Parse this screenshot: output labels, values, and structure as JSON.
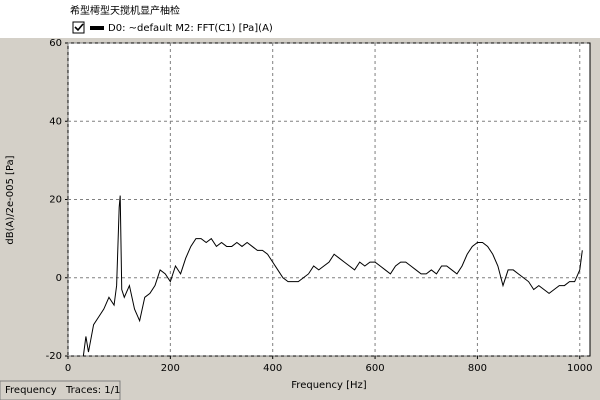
{
  "chart_data": {
    "type": "line",
    "title": "希型樗型天搅机显产柚检",
    "legend_checked": true,
    "x_label": "Frequency [Hz]",
    "y_label": "dB(A)/2e-005 [Pa]",
    "status_left": "Frequency",
    "status_right": "Traces: 1/1",
    "xlim": [
      0,
      1020
    ],
    "ylim": [
      -20,
      60
    ],
    "xticks": [
      0,
      200,
      400,
      600,
      800,
      1000
    ],
    "yticks": [
      -20,
      0,
      20,
      40,
      60
    ],
    "grid": true,
    "x": [
      30,
      35,
      40,
      50,
      60,
      70,
      80,
      90,
      95,
      100,
      102,
      105,
      110,
      120,
      130,
      140,
      150,
      160,
      170,
      180,
      190,
      200,
      210,
      220,
      230,
      240,
      250,
      260,
      270,
      280,
      290,
      300,
      310,
      320,
      330,
      340,
      350,
      360,
      370,
      380,
      390,
      400,
      410,
      420,
      430,
      440,
      450,
      460,
      470,
      480,
      490,
      500,
      510,
      520,
      530,
      540,
      550,
      560,
      570,
      580,
      590,
      600,
      610,
      620,
      630,
      640,
      650,
      660,
      670,
      680,
      690,
      700,
      710,
      720,
      730,
      740,
      750,
      760,
      770,
      780,
      790,
      800,
      810,
      820,
      830,
      840,
      850,
      860,
      870,
      880,
      890,
      900,
      910,
      920,
      930,
      940,
      950,
      960,
      970,
      980,
      990,
      1000,
      1005
    ],
    "series": [
      {
        "name": "D0: ~default  M2: FFT(C1) [Pa](A)",
        "color": "#000000",
        "values": [
          -20,
          -15,
          -19,
          -12,
          -10,
          -8,
          -5,
          -7,
          -2,
          18,
          21,
          -3,
          -5,
          -2,
          -8,
          -11,
          -5,
          -4,
          -2,
          2,
          1,
          -1,
          3,
          1,
          5,
          8,
          10,
          10,
          9,
          10,
          8,
          9,
          8,
          8,
          9,
          8,
          9,
          8,
          7,
          7,
          6,
          4,
          2,
          0,
          -1,
          -1,
          -1,
          0,
          1,
          3,
          2,
          3,
          4,
          6,
          5,
          4,
          3,
          2,
          4,
          3,
          4,
          4,
          3,
          2,
          1,
          3,
          4,
          4,
          3,
          2,
          1,
          1,
          2,
          1,
          3,
          3,
          2,
          1,
          3,
          6,
          8,
          9,
          9,
          8,
          6,
          3,
          -2,
          2,
          2,
          1,
          0,
          -1,
          -3,
          -2,
          -3,
          -4,
          -3,
          -2,
          -2,
          -1,
          -1,
          2,
          7
        ]
      }
    ]
  }
}
